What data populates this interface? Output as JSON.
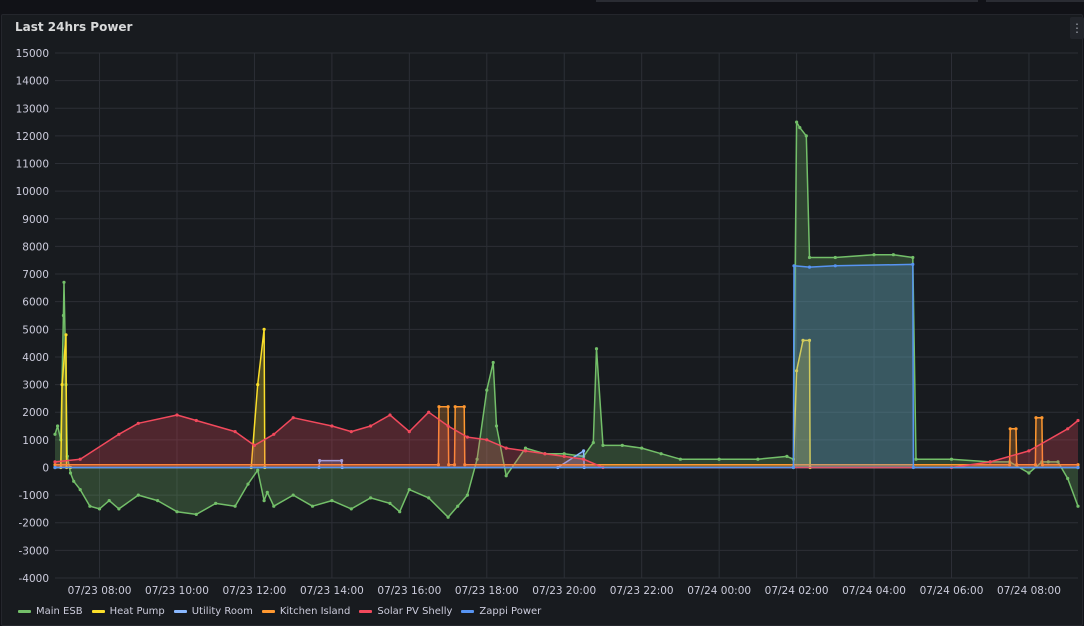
{
  "panel": {
    "title": "Last 24hrs Power",
    "menu_icon": "kebab-menu-icon"
  },
  "chart_data": {
    "type": "area",
    "title": "Last 24hrs Power",
    "xlabel": "",
    "ylabel": "",
    "grid": true,
    "legend_position": "bottom-left",
    "xlim": [
      "07/23 06:51",
      "07/24 09:16"
    ],
    "ylim": [
      -4000,
      15000
    ],
    "x_ticks": [
      "07/23 08:00",
      "07/23 10:00",
      "07/23 12:00",
      "07/23 14:00",
      "07/23 16:00",
      "07/23 18:00",
      "07/23 20:00",
      "07/23 22:00",
      "07/24 00:00",
      "07/24 02:00",
      "07/24 04:00",
      "07/24 06:00",
      "07/24 08:00"
    ],
    "y_ticks": [
      15000,
      14000,
      13000,
      12000,
      11000,
      10000,
      9000,
      8000,
      7000,
      6000,
      5000,
      4000,
      3000,
      2000,
      1000,
      0,
      -1000,
      -2000,
      -3000,
      -4000
    ],
    "series": [
      {
        "name": "Main ESB",
        "color": "#73bf69",
        "x": [
          "07/23 06:51",
          "07/23 06:55",
          "07/23 07:00",
          "07/23 07:04",
          "07/23 07:05",
          "07/23 07:08",
          "07/23 07:10",
          "07/23 07:15",
          "07/23 07:20",
          "07/23 07:30",
          "07/23 07:45",
          "07/23 08:00",
          "07/23 08:15",
          "07/23 08:30",
          "07/23 09:00",
          "07/23 09:30",
          "07/23 10:00",
          "07/23 10:30",
          "07/23 11:00",
          "07/23 11:30",
          "07/23 11:50",
          "07/23 12:05",
          "07/23 12:15",
          "07/23 12:20",
          "07/23 12:30",
          "07/23 13:00",
          "07/23 13:30",
          "07/23 14:00",
          "07/23 14:30",
          "07/23 15:00",
          "07/23 15:30",
          "07/23 15:45",
          "07/23 16:00",
          "07/23 16:30",
          "07/23 17:00",
          "07/23 17:15",
          "07/23 17:30",
          "07/23 17:45",
          "07/23 18:00",
          "07/23 18:10",
          "07/23 18:15",
          "07/23 18:30",
          "07/23 19:00",
          "07/23 19:30",
          "07/23 20:00",
          "07/23 20:30",
          "07/23 20:45",
          "07/23 20:50",
          "07/23 21:00",
          "07/23 21:30",
          "07/23 22:00",
          "07/23 22:30",
          "07/23 23:00",
          "07/24 00:00",
          "07/24 01:00",
          "07/24 01:45",
          "07/24 01:55",
          "07/24 02:00",
          "07/24 02:05",
          "07/24 02:15",
          "07/24 02:20",
          "07/24 03:00",
          "07/24 04:00",
          "07/24 04:30",
          "07/24 05:00",
          "07/24 05:05",
          "07/24 06:00",
          "07/24 07:00",
          "07/24 07:30",
          "07/24 08:00",
          "07/24 08:20",
          "07/24 08:30",
          "07/24 08:45",
          "07/24 09:00",
          "07/24 09:16"
        ],
        "values": [
          1200,
          1500,
          1000,
          5500,
          6700,
          3000,
          400,
          -200,
          -500,
          -800,
          -1400,
          -1500,
          -1200,
          -1500,
          -1000,
          -1200,
          -1600,
          -1700,
          -1300,
          -1400,
          -600,
          -100,
          -1200,
          -900,
          -1400,
          -1000,
          -1400,
          -1200,
          -1500,
          -1100,
          -1300,
          -1600,
          -800,
          -1100,
          -1800,
          -1400,
          -1000,
          300,
          2800,
          3800,
          1500,
          -300,
          700,
          500,
          500,
          400,
          900,
          4300,
          800,
          800,
          700,
          500,
          300,
          300,
          300,
          400,
          300,
          12500,
          12300,
          12000,
          7600,
          7600,
          7700,
          7700,
          7600,
          300,
          300,
          200,
          200,
          -200,
          200,
          200,
          200,
          -400,
          -1400
        ]
      },
      {
        "name": "Heat Pump",
        "color": "#fade2a",
        "x": [
          "07/23 06:51",
          "07/23 07:00",
          "07/23 07:02",
          "07/23 07:08",
          "07/23 07:09",
          "07/23 07:15",
          "07/23 11:55",
          "07/23 12:05",
          "07/23 12:15",
          "07/23 12:16",
          "07/24 01:55",
          "07/24 02:00",
          "07/24 02:10",
          "07/24 02:20",
          "07/24 02:21",
          "07/24 09:16"
        ],
        "values": [
          0,
          0,
          3000,
          4800,
          0,
          0,
          0,
          3000,
          5000,
          0,
          0,
          3500,
          4600,
          4600,
          0,
          0
        ]
      },
      {
        "name": "Utility Room",
        "color": "#8ab8ff",
        "x": [
          "07/23 06:51",
          "07/23 13:40",
          "07/23 13:41",
          "07/23 14:15",
          "07/23 14:16",
          "07/23 19:50",
          "07/23 20:30",
          "07/23 20:31",
          "07/24 09:16"
        ],
        "values": [
          0,
          0,
          250,
          250,
          0,
          0,
          600,
          0,
          0
        ]
      },
      {
        "name": "Kitchen Island",
        "color": "#ff9830",
        "x": [
          "07/23 06:51",
          "07/23 16:45",
          "07/23 16:46",
          "07/23 17:00",
          "07/23 17:01",
          "07/23 17:10",
          "07/23 17:11",
          "07/23 17:25",
          "07/23 17:26",
          "07/24 07:30",
          "07/24 07:31",
          "07/24 07:40",
          "07/24 07:41",
          "07/24 08:10",
          "07/24 08:11",
          "07/24 08:20",
          "07/24 08:21",
          "07/24 09:16"
        ],
        "values": [
          100,
          100,
          2200,
          2200,
          100,
          100,
          2200,
          2200,
          100,
          100,
          1400,
          1400,
          100,
          100,
          1800,
          1800,
          100,
          100
        ]
      },
      {
        "name": "Solar PV Shelly",
        "color": "#f2495c",
        "x": [
          "07/23 06:51",
          "07/23 07:30",
          "07/23 08:30",
          "07/23 09:00",
          "07/23 10:00",
          "07/23 10:30",
          "07/23 11:30",
          "07/23 12:00",
          "07/23 12:30",
          "07/23 13:00",
          "07/23 14:00",
          "07/23 14:30",
          "07/23 15:00",
          "07/23 15:30",
          "07/23 16:00",
          "07/23 16:30",
          "07/23 17:00",
          "07/23 17:30",
          "07/23 18:00",
          "07/23 18:30",
          "07/23 19:00",
          "07/23 19:30",
          "07/23 20:00",
          "07/23 20:30",
          "07/23 21:00",
          "07/24 06:00",
          "07/24 07:00",
          "07/24 08:00",
          "07/24 09:00",
          "07/24 09:16"
        ],
        "values": [
          200,
          300,
          1200,
          1600,
          1900,
          1700,
          1300,
          800,
          1200,
          1800,
          1500,
          1300,
          1500,
          1900,
          1300,
          2000,
          1500,
          1100,
          1000,
          700,
          600,
          500,
          400,
          300,
          0,
          0,
          200,
          600,
          1400,
          1700
        ]
      },
      {
        "name": "Zappi Power",
        "color": "#5794f2",
        "x": [
          "07/23 06:51",
          "07/24 01:55",
          "07/24 01:56",
          "07/24 02:20",
          "07/24 03:00",
          "07/24 05:00",
          "07/24 05:01",
          "07/24 09:16"
        ],
        "values": [
          0,
          0,
          7300,
          7250,
          7300,
          7350,
          0,
          0
        ]
      }
    ]
  }
}
